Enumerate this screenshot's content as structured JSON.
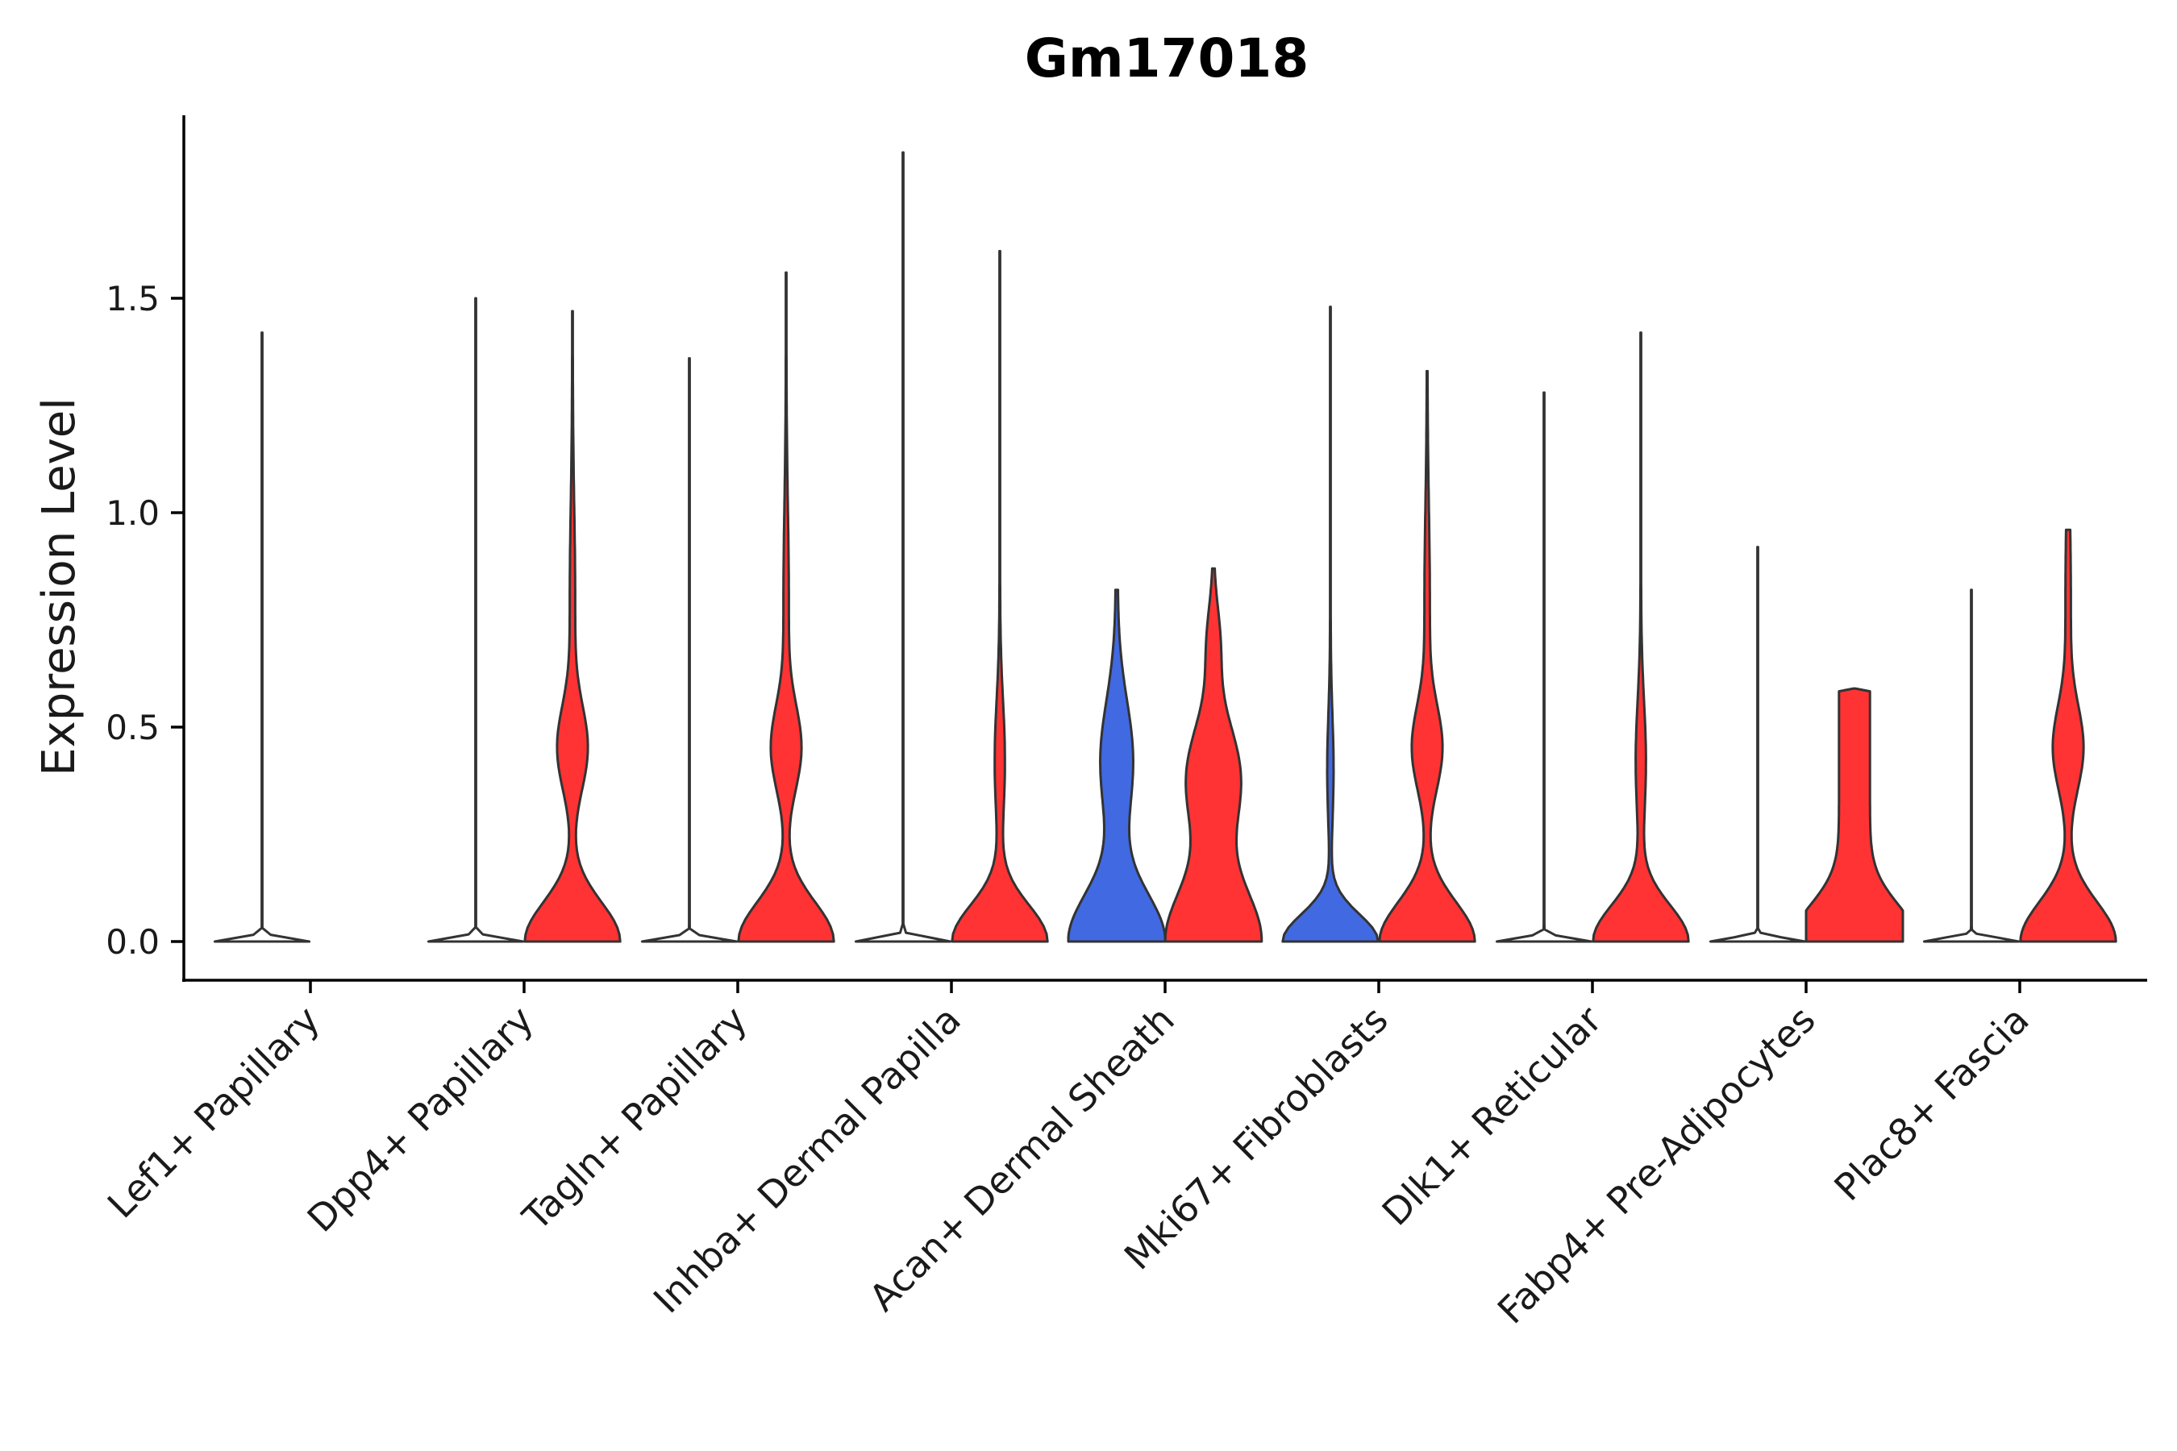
{
  "chart_data": {
    "type": "violin",
    "title": "Gm17018",
    "xlabel": "",
    "ylabel": "Expression Level",
    "ylim": [
      -0.09,
      1.93
    ],
    "yticks": [
      0.0,
      0.5,
      1.0,
      1.5
    ],
    "ytick_labels": [
      "0.0",
      "0.5",
      "1.0",
      "1.5"
    ],
    "grid": false,
    "legend": "none",
    "colors": {
      "condition_a": "#4169E1",
      "condition_b": "#FF3333",
      "outline": "#333333"
    },
    "categories": [
      "Lef1+ Papillary",
      "Dpp4+ Papillary",
      "Tagln+ Papillary",
      "Inhba+ Dermal Papilla",
      "Acan+ Dermal Sheath",
      "Mki67+ Fibroblasts",
      "Dlk1+ Reticular",
      "Fabp4+ Pre-Adipocytes",
      "Plac8+ Fascia"
    ],
    "series": [
      {
        "name": "condition_a",
        "color": "#4169E1",
        "max_values": [
          1.42,
          1.5,
          1.36,
          1.84,
          0.82,
          1.48,
          1.28,
          0.92,
          0.82
        ],
        "shapes": [
          "flat",
          "flat",
          "flat",
          "flat",
          "broad_low",
          "low_bulge",
          "flat",
          "flat",
          "flat"
        ]
      },
      {
        "name": "condition_b",
        "color": "#FF3333",
        "max_values": [
          null,
          1.47,
          1.56,
          1.61,
          0.87,
          1.33,
          1.42,
          0.59,
          0.96
        ],
        "shapes": [
          "none",
          "bimodal",
          "bimodal",
          "spiky",
          "broad",
          "bimodal",
          "spiky",
          "block",
          "bimodal"
        ]
      }
    ]
  }
}
